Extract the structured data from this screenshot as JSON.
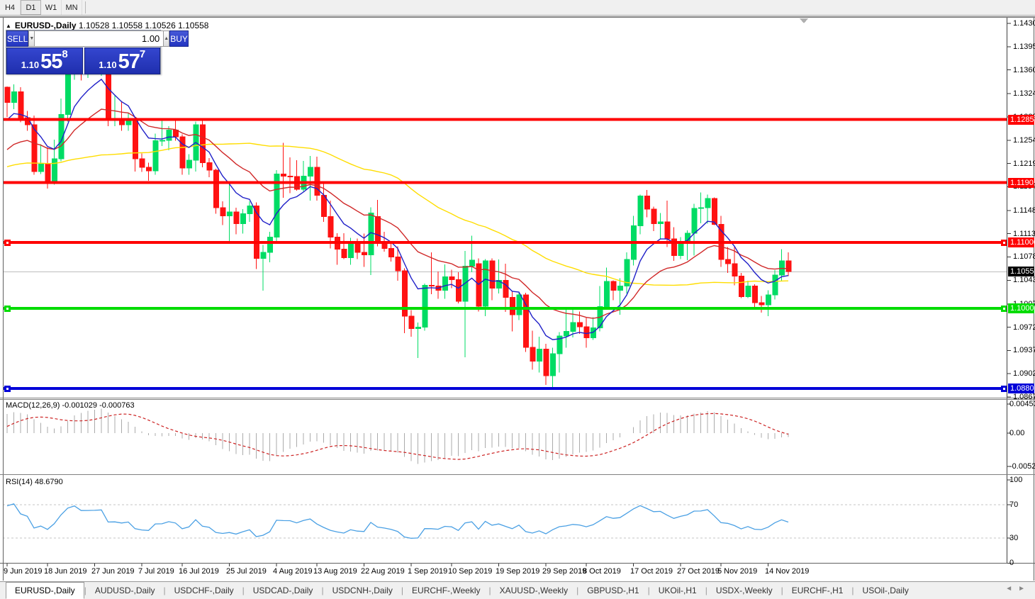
{
  "toolbar": {
    "timeframes": [
      {
        "label": "H4",
        "active": false
      },
      {
        "label": "D1",
        "active": true
      },
      {
        "label": "W1",
        "active": false
      },
      {
        "label": "MN",
        "active": false
      }
    ]
  },
  "window_title": {
    "symbol_period": "EURUSD-,Daily",
    "ohlc_values": "1.10528 1.10558 1.10526 1.10558"
  },
  "trade_panel": {
    "sell_label": "SELL",
    "buy_label": "BUY",
    "volume": "1.00",
    "spin_down_icon": "▼",
    "spin_up_icon": "▲",
    "sell_price": {
      "prefix": "1.10",
      "big": "55",
      "sup": "8"
    },
    "buy_price": {
      "prefix": "1.10",
      "big": "57",
      "sup": "7"
    }
  },
  "chart_data": {
    "type": "candlestick",
    "symbol": "EURUSD-",
    "timeframe": "Daily",
    "ylim": [
      1.0867,
      1.14375
    ],
    "bull_color": "#00DC64",
    "bear_color": "#FF1212",
    "current_price": {
      "text": "1.10558",
      "value": 1.10558,
      "line_color": "#bebebe",
      "label_bg": "#000000"
    },
    "axis_ticks": [
      "1.14300",
      "1.13950",
      "1.13600",
      "1.13240",
      "1.12890",
      "1.12540",
      "1.12190",
      "1.11840",
      "1.11480",
      "1.11130",
      "1.10780",
      "1.10430",
      "1.10070",
      "1.09720",
      "1.09370",
      "1.09020",
      "1.08670"
    ],
    "levels": [
      {
        "price": 1.12851,
        "text": "1.12851",
        "color": "#FF0000",
        "handles": false
      },
      {
        "price": 1.11901,
        "text": "1.11901",
        "color": "#FF0000",
        "handles": false
      },
      {
        "price": 1.11,
        "text": "1.11000",
        "color": "#FF0000",
        "handles": true
      },
      {
        "price": 1.10003,
        "text": "1.10003",
        "color": "#00DC00",
        "handles": true
      },
      {
        "price": 1.088,
        "text": "1.08800",
        "color": "#0000D8",
        "handles": true
      }
    ],
    "moving_averages": [
      {
        "period": 8,
        "method": "ema",
        "color": "#2020C8"
      },
      {
        "period": 21,
        "method": "ema",
        "color": "#D02828"
      },
      {
        "period": 50,
        "method": "sma",
        "color": "#FFDD00"
      }
    ],
    "date_labels": [
      {
        "text": "9 Jun 2019",
        "i": 0
      },
      {
        "text": "18 Jun 2019",
        "i": 6
      },
      {
        "text": "27 Jun 2019",
        "i": 13
      },
      {
        "text": "7 Jul 2019",
        "i": 20
      },
      {
        "text": "16 Jul 2019",
        "i": 26
      },
      {
        "text": "25 Jul 2019",
        "i": 33
      },
      {
        "text": "4 Aug 2019",
        "i": 40
      },
      {
        "text": "13 Aug 2019",
        "i": 46
      },
      {
        "text": "22 Aug 2019",
        "i": 53
      },
      {
        "text": "1 Sep 2019",
        "i": 60
      },
      {
        "text": "10 Sep 2019",
        "i": 66
      },
      {
        "text": "19 Sep 2019",
        "i": 73
      },
      {
        "text": "29 Sep 2019",
        "i": 80
      },
      {
        "text": "8 Oct 2019",
        "i": 86
      },
      {
        "text": "17 Oct 2019",
        "i": 93
      },
      {
        "text": "27 Oct 2019",
        "i": 100
      },
      {
        "text": "5 Nov 2019",
        "i": 106
      },
      {
        "text": "14 Nov 2019",
        "i": 113
      }
    ],
    "indicator_warmup_closes": [
      1.1305,
      1.129,
      1.128,
      1.1295,
      1.1288,
      1.127,
      1.1255,
      1.124,
      1.1228,
      1.1212,
      1.12,
      1.119,
      1.1178,
      1.1168,
      1.1158,
      1.1172,
      1.119,
      1.1185,
      1.1175,
      1.1168,
      1.116,
      1.115,
      1.1138,
      1.1125,
      1.1118,
      1.1122,
      1.1135,
      1.115,
      1.1163,
      1.1178,
      1.119,
      1.1205,
      1.1218,
      1.1232,
      1.1248,
      1.1262,
      1.1278,
      1.1295,
      1.1316,
      1.1334
    ],
    "candles": [
      [
        1.1334,
        1.1335,
        1.1289,
        1.1311
      ],
      [
        1.1311,
        1.1338,
        1.1301,
        1.1327
      ],
      [
        1.1327,
        1.1334,
        1.1281,
        1.1288
      ],
      [
        1.1288,
        1.1298,
        1.1268,
        1.1277
      ],
      [
        1.1277,
        1.1291,
        1.1202,
        1.1207
      ],
      [
        1.1207,
        1.1248,
        1.1203,
        1.1218
      ],
      [
        1.1218,
        1.1243,
        1.1181,
        1.1193
      ],
      [
        1.1193,
        1.1255,
        1.1187,
        1.1226
      ],
      [
        1.1226,
        1.1317,
        1.1222,
        1.1293
      ],
      [
        1.1293,
        1.1378,
        1.1282,
        1.1368
      ],
      [
        1.1368,
        1.1403,
        1.1345,
        1.1398
      ],
      [
        1.1398,
        1.1412,
        1.1344,
        1.1366
      ],
      [
        1.1366,
        1.1391,
        1.1348,
        1.1367
      ],
      [
        1.1367,
        1.1392,
        1.136,
        1.1369
      ],
      [
        1.1369,
        1.1394,
        1.1351,
        1.1373
      ],
      [
        1.1364,
        1.1368,
        1.1275,
        1.1285
      ],
      [
        1.1285,
        1.1322,
        1.1275,
        1.1286
      ],
      [
        1.1286,
        1.1313,
        1.1268,
        1.1277
      ],
      [
        1.1277,
        1.1295,
        1.1268,
        1.1284
      ],
      [
        1.1284,
        1.1288,
        1.1207,
        1.1226
      ],
      [
        1.1226,
        1.1234,
        1.1206,
        1.1213
      ],
      [
        1.1213,
        1.122,
        1.1193,
        1.1208
      ],
      [
        1.1208,
        1.1264,
        1.1202,
        1.1253
      ],
      [
        1.1253,
        1.1285,
        1.1245,
        1.1254
      ],
      [
        1.1254,
        1.1275,
        1.1239,
        1.1269
      ],
      [
        1.1269,
        1.1285,
        1.1253,
        1.1259
      ],
      [
        1.1259,
        1.1263,
        1.1202,
        1.1212
      ],
      [
        1.1212,
        1.1233,
        1.1202,
        1.1224
      ],
      [
        1.1224,
        1.1282,
        1.1207,
        1.1277
      ],
      [
        1.1277,
        1.1283,
        1.1213,
        1.122
      ],
      [
        1.122,
        1.1227,
        1.1198,
        1.1209
      ],
      [
        1.1209,
        1.1211,
        1.1143,
        1.1152
      ],
      [
        1.1152,
        1.1162,
        1.1126,
        1.114
      ],
      [
        1.114,
        1.1187,
        1.1101,
        1.1146
      ],
      [
        1.1146,
        1.1152,
        1.1112,
        1.1128
      ],
      [
        1.1128,
        1.115,
        1.1113,
        1.1143
      ],
      [
        1.1143,
        1.1162,
        1.1131,
        1.1155
      ],
      [
        1.1155,
        1.116,
        1.106,
        1.1076
      ],
      [
        1.1076,
        1.1096,
        1.1027,
        1.1085
      ],
      [
        1.1085,
        1.1116,
        1.107,
        1.1108
      ],
      [
        1.1108,
        1.1209,
        1.1101,
        1.1203
      ],
      [
        1.1203,
        1.125,
        1.1167,
        1.12
      ],
      [
        1.12,
        1.1228,
        1.1174,
        1.1199
      ],
      [
        1.1199,
        1.1224,
        1.1178,
        1.118
      ],
      [
        1.118,
        1.1223,
        1.1177,
        1.12
      ],
      [
        1.12,
        1.123,
        1.1163,
        1.1213
      ],
      [
        1.1213,
        1.1229,
        1.1163,
        1.1171
      ],
      [
        1.1171,
        1.1192,
        1.1131,
        1.1139
      ],
      [
        1.1139,
        1.1163,
        1.1091,
        1.1108
      ],
      [
        1.1108,
        1.1114,
        1.1066,
        1.109
      ],
      [
        1.109,
        1.1114,
        1.1075,
        1.1077
      ],
      [
        1.1077,
        1.1107,
        1.1066,
        1.1099
      ],
      [
        1.1099,
        1.1106,
        1.1075,
        1.1085
      ],
      [
        1.1085,
        1.1113,
        1.1063,
        1.1081
      ],
      [
        1.1081,
        1.1153,
        1.1051,
        1.1144
      ],
      [
        1.1139,
        1.1164,
        1.1094,
        1.1101
      ],
      [
        1.1101,
        1.1116,
        1.1086,
        1.1091
      ],
      [
        1.1091,
        1.1098,
        1.1071,
        1.1078
      ],
      [
        1.1078,
        1.1094,
        1.1042,
        1.1057
      ],
      [
        1.1057,
        1.1061,
        1.0963,
        1.0989
      ],
      [
        1.0989,
        1.0998,
        1.0958,
        1.097
      ],
      [
        1.097,
        1.0979,
        1.0926,
        1.0972
      ],
      [
        1.0972,
        1.1038,
        1.0967,
        1.1035
      ],
      [
        1.1035,
        1.1085,
        1.1022,
        1.1034
      ],
      [
        1.1034,
        1.1056,
        1.1015,
        1.1028
      ],
      [
        1.1028,
        1.1067,
        1.1015,
        1.1048
      ],
      [
        1.1048,
        1.1059,
        1.1031,
        1.1044
      ],
      [
        1.1044,
        1.1055,
        1.1008,
        1.1011
      ],
      [
        1.1011,
        1.1087,
        1.0927,
        1.1064
      ],
      [
        1.1064,
        1.111,
        1.1055,
        1.1073
      ],
      [
        1.1068,
        1.1076,
        1.0996,
        1.1004
      ],
      [
        1.1004,
        1.1075,
        1.0989,
        1.1072
      ],
      [
        1.1072,
        1.1076,
        1.1013,
        1.1031
      ],
      [
        1.1031,
        1.1074,
        1.1023,
        1.1043
      ],
      [
        1.1043,
        1.1068,
        1.0995,
        1.1017
      ],
      [
        1.1017,
        1.1026,
        1.0966,
        1.0991
      ],
      [
        1.0991,
        1.1024,
        1.0983,
        1.1021
      ],
      [
        1.1021,
        1.1024,
        1.0935,
        1.0942
      ],
      [
        1.0942,
        1.0967,
        1.0908,
        1.0921
      ],
      [
        1.0921,
        1.0958,
        1.0904,
        1.0939
      ],
      [
        1.0939,
        1.0947,
        1.0885,
        1.0899
      ],
      [
        1.0899,
        1.0941,
        1.0879,
        1.0932
      ],
      [
        1.0932,
        1.0965,
        1.0904,
        1.0959
      ],
      [
        1.0959,
        1.0999,
        1.0941,
        1.0966
      ],
      [
        1.0966,
        1.0999,
        1.0957,
        1.0979
      ],
      [
        1.0979,
        1.0996,
        1.0962,
        1.0973
      ],
      [
        1.0973,
        1.0986,
        1.0941,
        1.0956
      ],
      [
        1.0956,
        1.0987,
        1.0953,
        1.0971
      ],
      [
        1.0971,
        1.1034,
        1.0966,
        1.1003
      ],
      [
        1.1003,
        1.1062,
        1.1002,
        1.1041
      ],
      [
        1.1041,
        1.1043,
        1.1013,
        1.1028
      ],
      [
        1.1028,
        1.1046,
        1.0991,
        1.1034
      ],
      [
        1.1034,
        1.1085,
        1.1023,
        1.1074
      ],
      [
        1.1074,
        1.114,
        1.1065,
        1.1125
      ],
      [
        1.1125,
        1.1172,
        1.1112,
        1.117
      ],
      [
        1.117,
        1.1179,
        1.1138,
        1.115
      ],
      [
        1.115,
        1.1154,
        1.1117,
        1.1128
      ],
      [
        1.1128,
        1.1144,
        1.1106,
        1.1131
      ],
      [
        1.1131,
        1.1163,
        1.1093,
        1.1105
      ],
      [
        1.1105,
        1.1123,
        1.1072,
        1.108
      ],
      [
        1.108,
        1.1108,
        1.1075,
        1.1099
      ],
      [
        1.1099,
        1.1118,
        1.1073,
        1.1114
      ],
      [
        1.1114,
        1.1158,
        1.108,
        1.1151
      ],
      [
        1.1151,
        1.1175,
        1.1129,
        1.1152
      ],
      [
        1.1152,
        1.1172,
        1.1128,
        1.1166
      ],
      [
        1.1166,
        1.1168,
        1.1126,
        1.1127
      ],
      [
        1.1127,
        1.114,
        1.1063,
        1.1074
      ],
      [
        1.1074,
        1.1093,
        1.1054,
        1.1068
      ],
      [
        1.1068,
        1.1093,
        1.1035,
        1.1049
      ],
      [
        1.1049,
        1.1054,
        1.1016,
        1.1018
      ],
      [
        1.1018,
        1.1042,
        1.1016,
        1.1034
      ],
      [
        1.1034,
        1.1037,
        1.1002,
        1.1009
      ],
      [
        1.1009,
        1.1019,
        1.0994,
        1.1006
      ],
      [
        1.1006,
        1.1028,
        1.0989,
        1.1021
      ],
      [
        1.1021,
        1.1058,
        1.1014,
        1.1051
      ],
      [
        1.1051,
        1.109,
        1.1041,
        1.1072
      ],
      [
        1.1072,
        1.1085,
        1.1049,
        1.1056
      ]
    ]
  },
  "macd_panel": {
    "label": "MACD(12,26,9)",
    "value_main": "-0.001029",
    "value_signal": "-0.000763",
    "fast": 12,
    "slow": 26,
    "signal": 9,
    "hist_color": "#ABABAB",
    "signal_color": "#CC2222",
    "scale_labels": [
      {
        "text": "0.004536",
        "v": 0.004536
      },
      {
        "text": "0.00",
        "v": 0
      },
      {
        "text": "-0.00520",
        "v": -0.0052
      }
    ]
  },
  "rsi_panel": {
    "label": "RSI(14)",
    "value": "48.6790",
    "period": 14,
    "line_color": "#4AA0E4",
    "level_lines": [
      70,
      30
    ],
    "scale_labels": [
      {
        "text": "100",
        "v": 100
      },
      {
        "text": "70",
        "v": 70
      },
      {
        "text": "30",
        "v": 30
      },
      {
        "text": "0",
        "v": 0
      }
    ]
  },
  "tabbar": {
    "separator_glyph": "|",
    "left_arrow_icon": "◄",
    "right_arrow_icon": "►",
    "tabs": [
      {
        "label": "EURUSD-,Daily",
        "active": true
      },
      {
        "label": "AUDUSD-,Daily",
        "active": false
      },
      {
        "label": "USDCHF-,Daily",
        "active": false
      },
      {
        "label": "USDCAD-,Daily",
        "active": false
      },
      {
        "label": "USDCNH-,Daily",
        "active": false
      },
      {
        "label": "EURCHF-,Weekly",
        "active": false
      },
      {
        "label": "XAUUSD-,Weekly",
        "active": false
      },
      {
        "label": "GBPUSD-,H1",
        "active": false
      },
      {
        "label": "UKOil-,H1",
        "active": false
      },
      {
        "label": "USDX-,Weekly",
        "active": false
      },
      {
        "label": "EURCHF-,H1",
        "active": false
      },
      {
        "label": "USOil-,Daily",
        "active": false
      }
    ]
  }
}
